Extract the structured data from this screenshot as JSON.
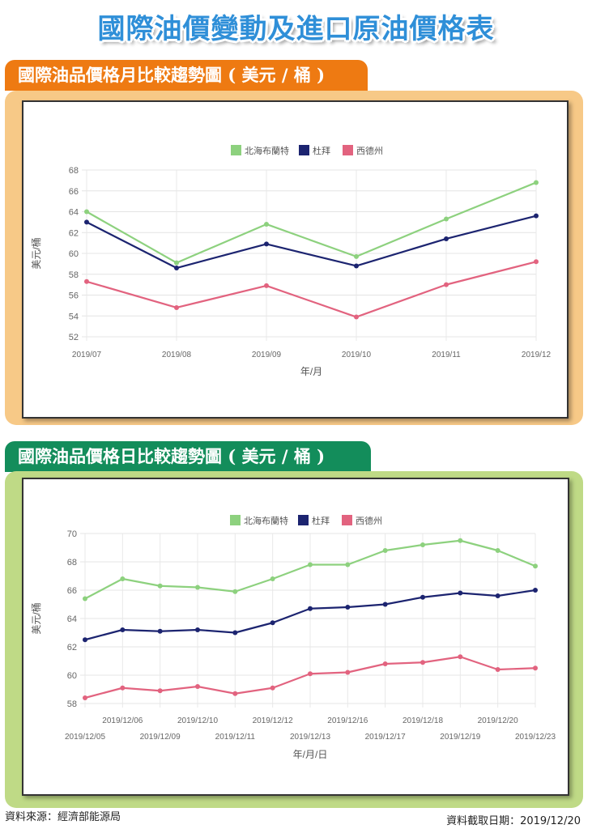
{
  "header": {
    "title": "國際油價變動及進口原油價格表"
  },
  "sections": [
    {
      "title": "國際油品價格月比較趨勢圖 ( 美元 / 桶 )"
    },
    {
      "title": "國際油品價格日比較趨勢圖 ( 美元 / 桶 )"
    }
  ],
  "footer": {
    "source": "資料來源：經濟部能源局",
    "date": "資料截取日期：2019/12/20"
  },
  "colors": {
    "brent": "#8dd17e",
    "dubai": "#1c2470",
    "wti": "#e2637f",
    "tab_monthly": "#ee7a12",
    "tab_daily": "#138d5b"
  },
  "chart_data": [
    {
      "type": "line",
      "x": [
        "2019/07",
        "2019/08",
        "2019/09",
        "2019/10",
        "2019/11",
        "2019/12"
      ],
      "series": [
        {
          "name": "北海布蘭特",
          "color": "#8dd17e",
          "values": [
            64.0,
            59.1,
            62.8,
            59.7,
            63.3,
            66.8
          ]
        },
        {
          "name": "杜拜",
          "color": "#1c2470",
          "values": [
            63.0,
            58.6,
            60.9,
            58.8,
            61.4,
            63.6
          ]
        },
        {
          "name": "西德州",
          "color": "#e2637f",
          "values": [
            57.3,
            54.8,
            56.9,
            53.9,
            57.0,
            59.2
          ]
        }
      ],
      "yticks": [
        52,
        54,
        56,
        58,
        60,
        62,
        64,
        66,
        68
      ],
      "ylim": [
        52,
        68
      ],
      "xlabel": "年/月",
      "ylabel": "美元/桶",
      "legend": "top-center"
    },
    {
      "type": "line",
      "x": [
        "2019/12/05",
        "2019/12/06",
        "2019/12/09",
        "2019/12/10",
        "2019/12/11",
        "2019/12/12",
        "2019/12/13",
        "2019/12/16",
        "2019/12/17",
        "2019/12/18",
        "2019/12/19",
        "2019/12/20",
        "2019/12/23"
      ],
      "series": [
        {
          "name": "北海布蘭特",
          "color": "#8dd17e",
          "values": [
            65.4,
            66.8,
            66.3,
            66.2,
            65.9,
            66.8,
            67.8,
            67.8,
            68.8,
            69.2,
            69.5,
            68.8,
            67.7
          ]
        },
        {
          "name": "杜拜",
          "color": "#1c2470",
          "values": [
            62.5,
            63.2,
            63.1,
            63.2,
            63.0,
            63.7,
            64.7,
            64.8,
            65.0,
            65.5,
            65.8,
            65.6,
            66.0
          ]
        },
        {
          "name": "西德州",
          "color": "#e2637f",
          "values": [
            58.4,
            59.1,
            58.9,
            59.2,
            58.7,
            59.1,
            60.1,
            60.2,
            60.8,
            60.9,
            61.3,
            60.4,
            60.5
          ]
        }
      ],
      "yticks": [
        58,
        60,
        62,
        64,
        66,
        68,
        70
      ],
      "ylim": [
        58,
        70
      ],
      "xlabel": "年/月/日",
      "ylabel": "美元/桶",
      "legend": "top-center"
    }
  ]
}
